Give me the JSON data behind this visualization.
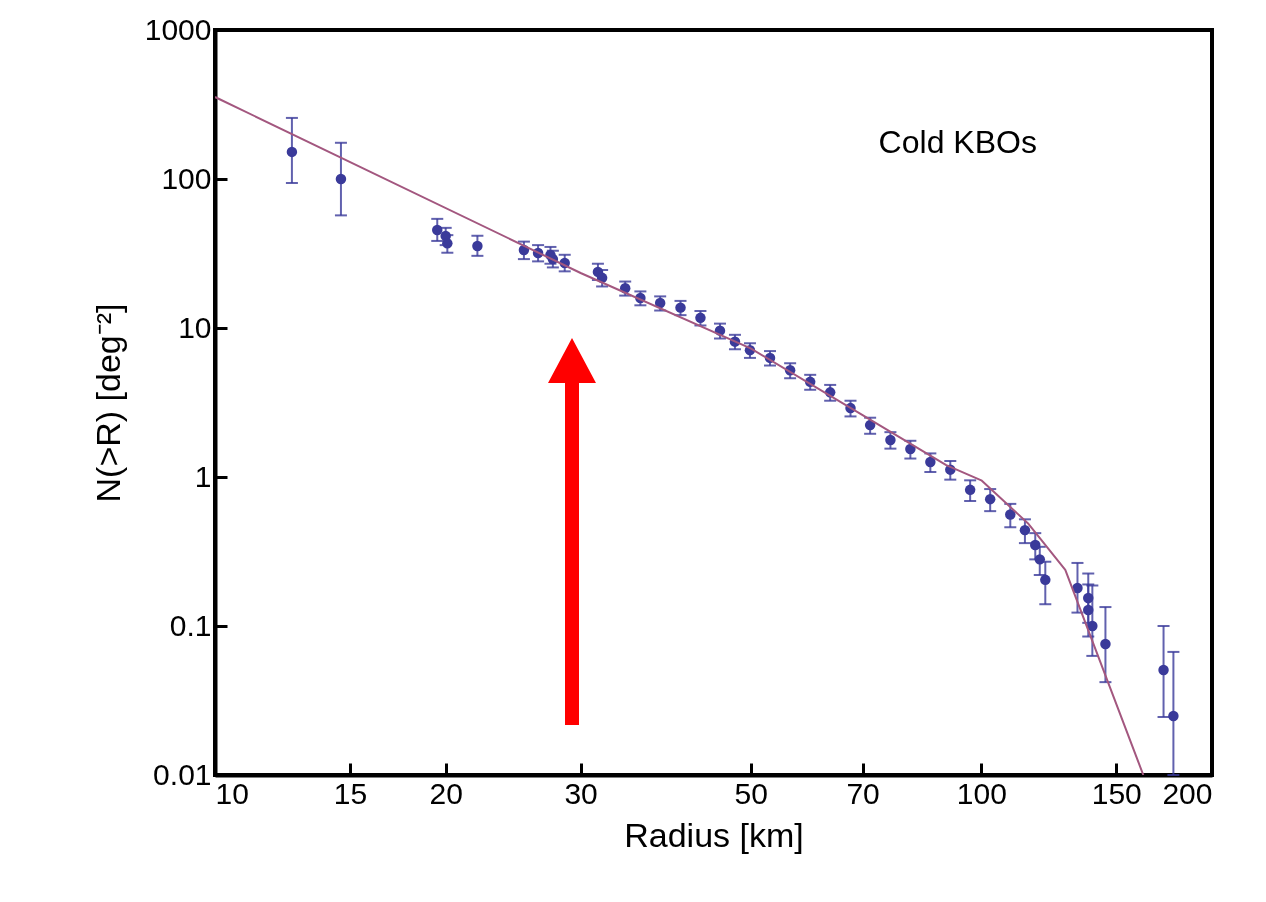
{
  "chart_data": {
    "type": "scatter",
    "xlabel": "Radius [km]",
    "ylabel": "N(>R) [deg⁻²]",
    "log": "xy",
    "xlim": [
      10,
      200
    ],
    "ylim": [
      0.01,
      1000
    ],
    "xticks": [
      10,
      15,
      20,
      30,
      50,
      70,
      100,
      150,
      200
    ],
    "yticks": [
      0.01,
      0.1,
      1,
      10,
      100,
      1000
    ],
    "annotations": [
      "Cold KBOs"
    ],
    "series": [
      {
        "color": "#3a3a9a",
        "marker": "circle",
        "x": [
          12.6,
          14.6,
          19.5,
          20.0,
          20.1,
          22.0,
          25.3,
          26.4,
          27.4,
          27.6,
          28.6,
          31.6,
          32.0,
          34.3,
          35.9,
          38.1,
          40.5,
          43.0,
          45.6,
          47.7,
          49.9,
          53.0,
          56.3,
          59.8,
          63.5,
          67.5,
          71.6,
          76.1,
          80.8,
          85.8,
          91.1,
          96.7,
          102.7,
          109.1,
          114,
          117.6,
          119.2,
          121.2,
          133.5,
          137.9,
          137.9,
          139.6,
          145.2,
          172.9,
          178.1
        ],
        "values": [
          152,
          100,
          45.5,
          41.5,
          37,
          35.5,
          33.4,
          31.9,
          30.9,
          29,
          27.3,
          23.8,
          21.7,
          18.5,
          15.9,
          14.7,
          13.7,
          11.7,
          9.6,
          8.1,
          7.1,
          6.3,
          5.2,
          4.35,
          3.7,
          2.9,
          2.23,
          1.77,
          1.54,
          1.26,
          1.12,
          0.82,
          0.71,
          0.56,
          0.44,
          0.35,
          0.28,
          0.204,
          0.18,
          0.154,
          0.128,
          0.1,
          0.0757,
          0.0507,
          0.0249
        ],
        "errors": [
          [
            94,
            257
          ],
          [
            57,
            175
          ],
          [
            38.4,
            54
          ],
          [
            36,
            47
          ],
          [
            32,
            42
          ],
          [
            30.5,
            41.6
          ],
          [
            29,
            38
          ],
          [
            28,
            36
          ],
          [
            27,
            35
          ],
          [
            25.5,
            33
          ],
          [
            24,
            31
          ],
          [
            21,
            27
          ],
          [
            19,
            24.5
          ],
          [
            16.5,
            20.5
          ],
          [
            14.2,
            17.6
          ],
          [
            13.1,
            16.3
          ],
          [
            12.2,
            15.2
          ],
          [
            10.4,
            13
          ],
          [
            8.5,
            10.7
          ],
          [
            7.2,
            9
          ],
          [
            6.3,
            7.9
          ],
          [
            5.6,
            7
          ],
          [
            4.6,
            5.8
          ],
          [
            3.85,
            4.85
          ],
          [
            3.25,
            4.15
          ],
          [
            2.55,
            3.25
          ],
          [
            1.95,
            2.5
          ],
          [
            1.55,
            2
          ],
          [
            1.33,
            1.75
          ],
          [
            1.08,
            1.44
          ],
          [
            0.96,
            1.28
          ],
          [
            0.69,
            0.95
          ],
          [
            0.59,
            0.83
          ],
          [
            0.46,
            0.66
          ],
          [
            0.36,
            0.52
          ],
          [
            0.28,
            0.42
          ],
          [
            0.22,
            0.34
          ],
          [
            0.14,
            0.27
          ],
          [
            0.123,
            0.265
          ],
          [
            0.105,
            0.225
          ],
          [
            0.085,
            0.19
          ],
          [
            0.063,
            0.187
          ],
          [
            0.042,
            0.134
          ],
          [
            0.0245,
            0.1
          ],
          [
            0.01,
            0.067
          ]
        ]
      },
      {
        "type": "line",
        "marker": "none",
        "color": "#a3577f",
        "x": [
          10,
          30,
          50,
          70,
          90,
          100,
          115,
          128.7,
          162.7
        ],
        "values": [
          355,
          23.4,
          7.3,
          2.6,
          1.2,
          0.95,
          0.49,
          0.238,
          0.01
        ]
      }
    ]
  }
}
